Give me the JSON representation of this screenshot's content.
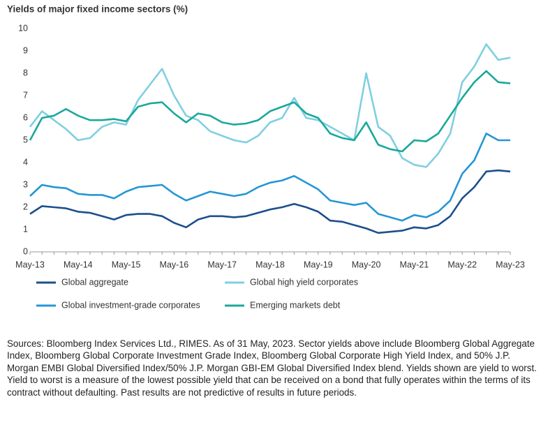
{
  "chart_data": {
    "type": "line",
    "title": "Yields of major fixed income sectors (%)",
    "categories": [
      "May-13",
      null,
      null,
      null,
      "May-14",
      null,
      null,
      null,
      "May-15",
      null,
      null,
      null,
      "May-16",
      null,
      null,
      null,
      "May-17",
      null,
      null,
      null,
      "May-18",
      null,
      null,
      null,
      "May-19",
      null,
      null,
      null,
      "May-20",
      null,
      null,
      null,
      "May-21",
      null,
      null,
      null,
      "May-22",
      null,
      null,
      null,
      "May-23"
    ],
    "series": [
      {
        "name": "Global aggregate",
        "color": "#1d4f8c",
        "values": [
          1.7,
          2.05,
          2.0,
          1.95,
          1.8,
          1.75,
          1.6,
          1.45,
          1.65,
          1.7,
          1.7,
          1.6,
          1.3,
          1.1,
          1.45,
          1.6,
          1.6,
          1.55,
          1.6,
          1.75,
          1.9,
          2.0,
          2.15,
          2.0,
          1.8,
          1.4,
          1.35,
          1.2,
          1.05,
          0.85,
          0.9,
          0.95,
          1.1,
          1.05,
          1.2,
          1.6,
          2.4,
          2.9,
          3.6,
          3.65,
          3.6
        ]
      },
      {
        "name": "Global high yield corporates",
        "color": "#80cfe2",
        "values": [
          5.6,
          6.3,
          5.9,
          5.5,
          5.0,
          5.1,
          5.6,
          5.8,
          5.7,
          6.8,
          7.5,
          8.2,
          7.0,
          6.1,
          5.9,
          5.4,
          5.2,
          5.0,
          4.9,
          5.2,
          5.8,
          6.0,
          6.9,
          6.0,
          5.9,
          5.6,
          5.3,
          5.0,
          8.0,
          5.6,
          5.2,
          4.2,
          3.9,
          3.8,
          4.4,
          5.3,
          7.6,
          8.3,
          9.3,
          8.6,
          8.7
        ]
      },
      {
        "name": "Global investment-grade corporates",
        "color": "#2596d6",
        "values": [
          2.5,
          3.0,
          2.9,
          2.85,
          2.6,
          2.55,
          2.55,
          2.4,
          2.7,
          2.9,
          2.95,
          3.0,
          2.6,
          2.3,
          2.5,
          2.7,
          2.6,
          2.5,
          2.6,
          2.9,
          3.1,
          3.2,
          3.4,
          3.1,
          2.8,
          2.3,
          2.2,
          2.1,
          2.2,
          1.7,
          1.55,
          1.4,
          1.65,
          1.55,
          1.8,
          2.3,
          3.5,
          4.1,
          5.3,
          5.0,
          5.0
        ]
      },
      {
        "name": "Emerging markets debt",
        "color": "#1ba89a",
        "values": [
          5.0,
          6.0,
          6.1,
          6.4,
          6.1,
          5.9,
          5.9,
          5.95,
          5.85,
          6.5,
          6.65,
          6.7,
          6.2,
          5.8,
          6.2,
          6.1,
          5.8,
          5.7,
          5.75,
          5.9,
          6.3,
          6.5,
          6.7,
          6.2,
          6.0,
          5.3,
          5.1,
          5.0,
          5.8,
          4.8,
          4.6,
          4.5,
          5.0,
          4.95,
          5.3,
          6.1,
          6.9,
          7.6,
          8.1,
          7.6,
          7.55
        ]
      }
    ],
    "ylim": [
      0,
      10
    ],
    "yticks": [
      0,
      1,
      2,
      3,
      4,
      5,
      6,
      7,
      8,
      9,
      10
    ],
    "grid": false,
    "note": "Sources: Bloomberg Index Services Ltd., RIMES. As of 31 May, 2023. Sector yields above include Bloomberg Global Aggregate Index, Bloomberg Global Corporate Investment Grade Index, Bloomberg Global Corporate High Yield Index, and 50% J.P. Morgan EMBI Global Diversified Index/50% J.P. Morgan GBI-EM Global Diversified Index blend. Yields shown are yield to worst. Yield to worst is a measure of the lowest possible yield that can be received on a bond that fully operates within the terms of its contract without defaulting. Past results are not predictive of results in future periods."
  }
}
